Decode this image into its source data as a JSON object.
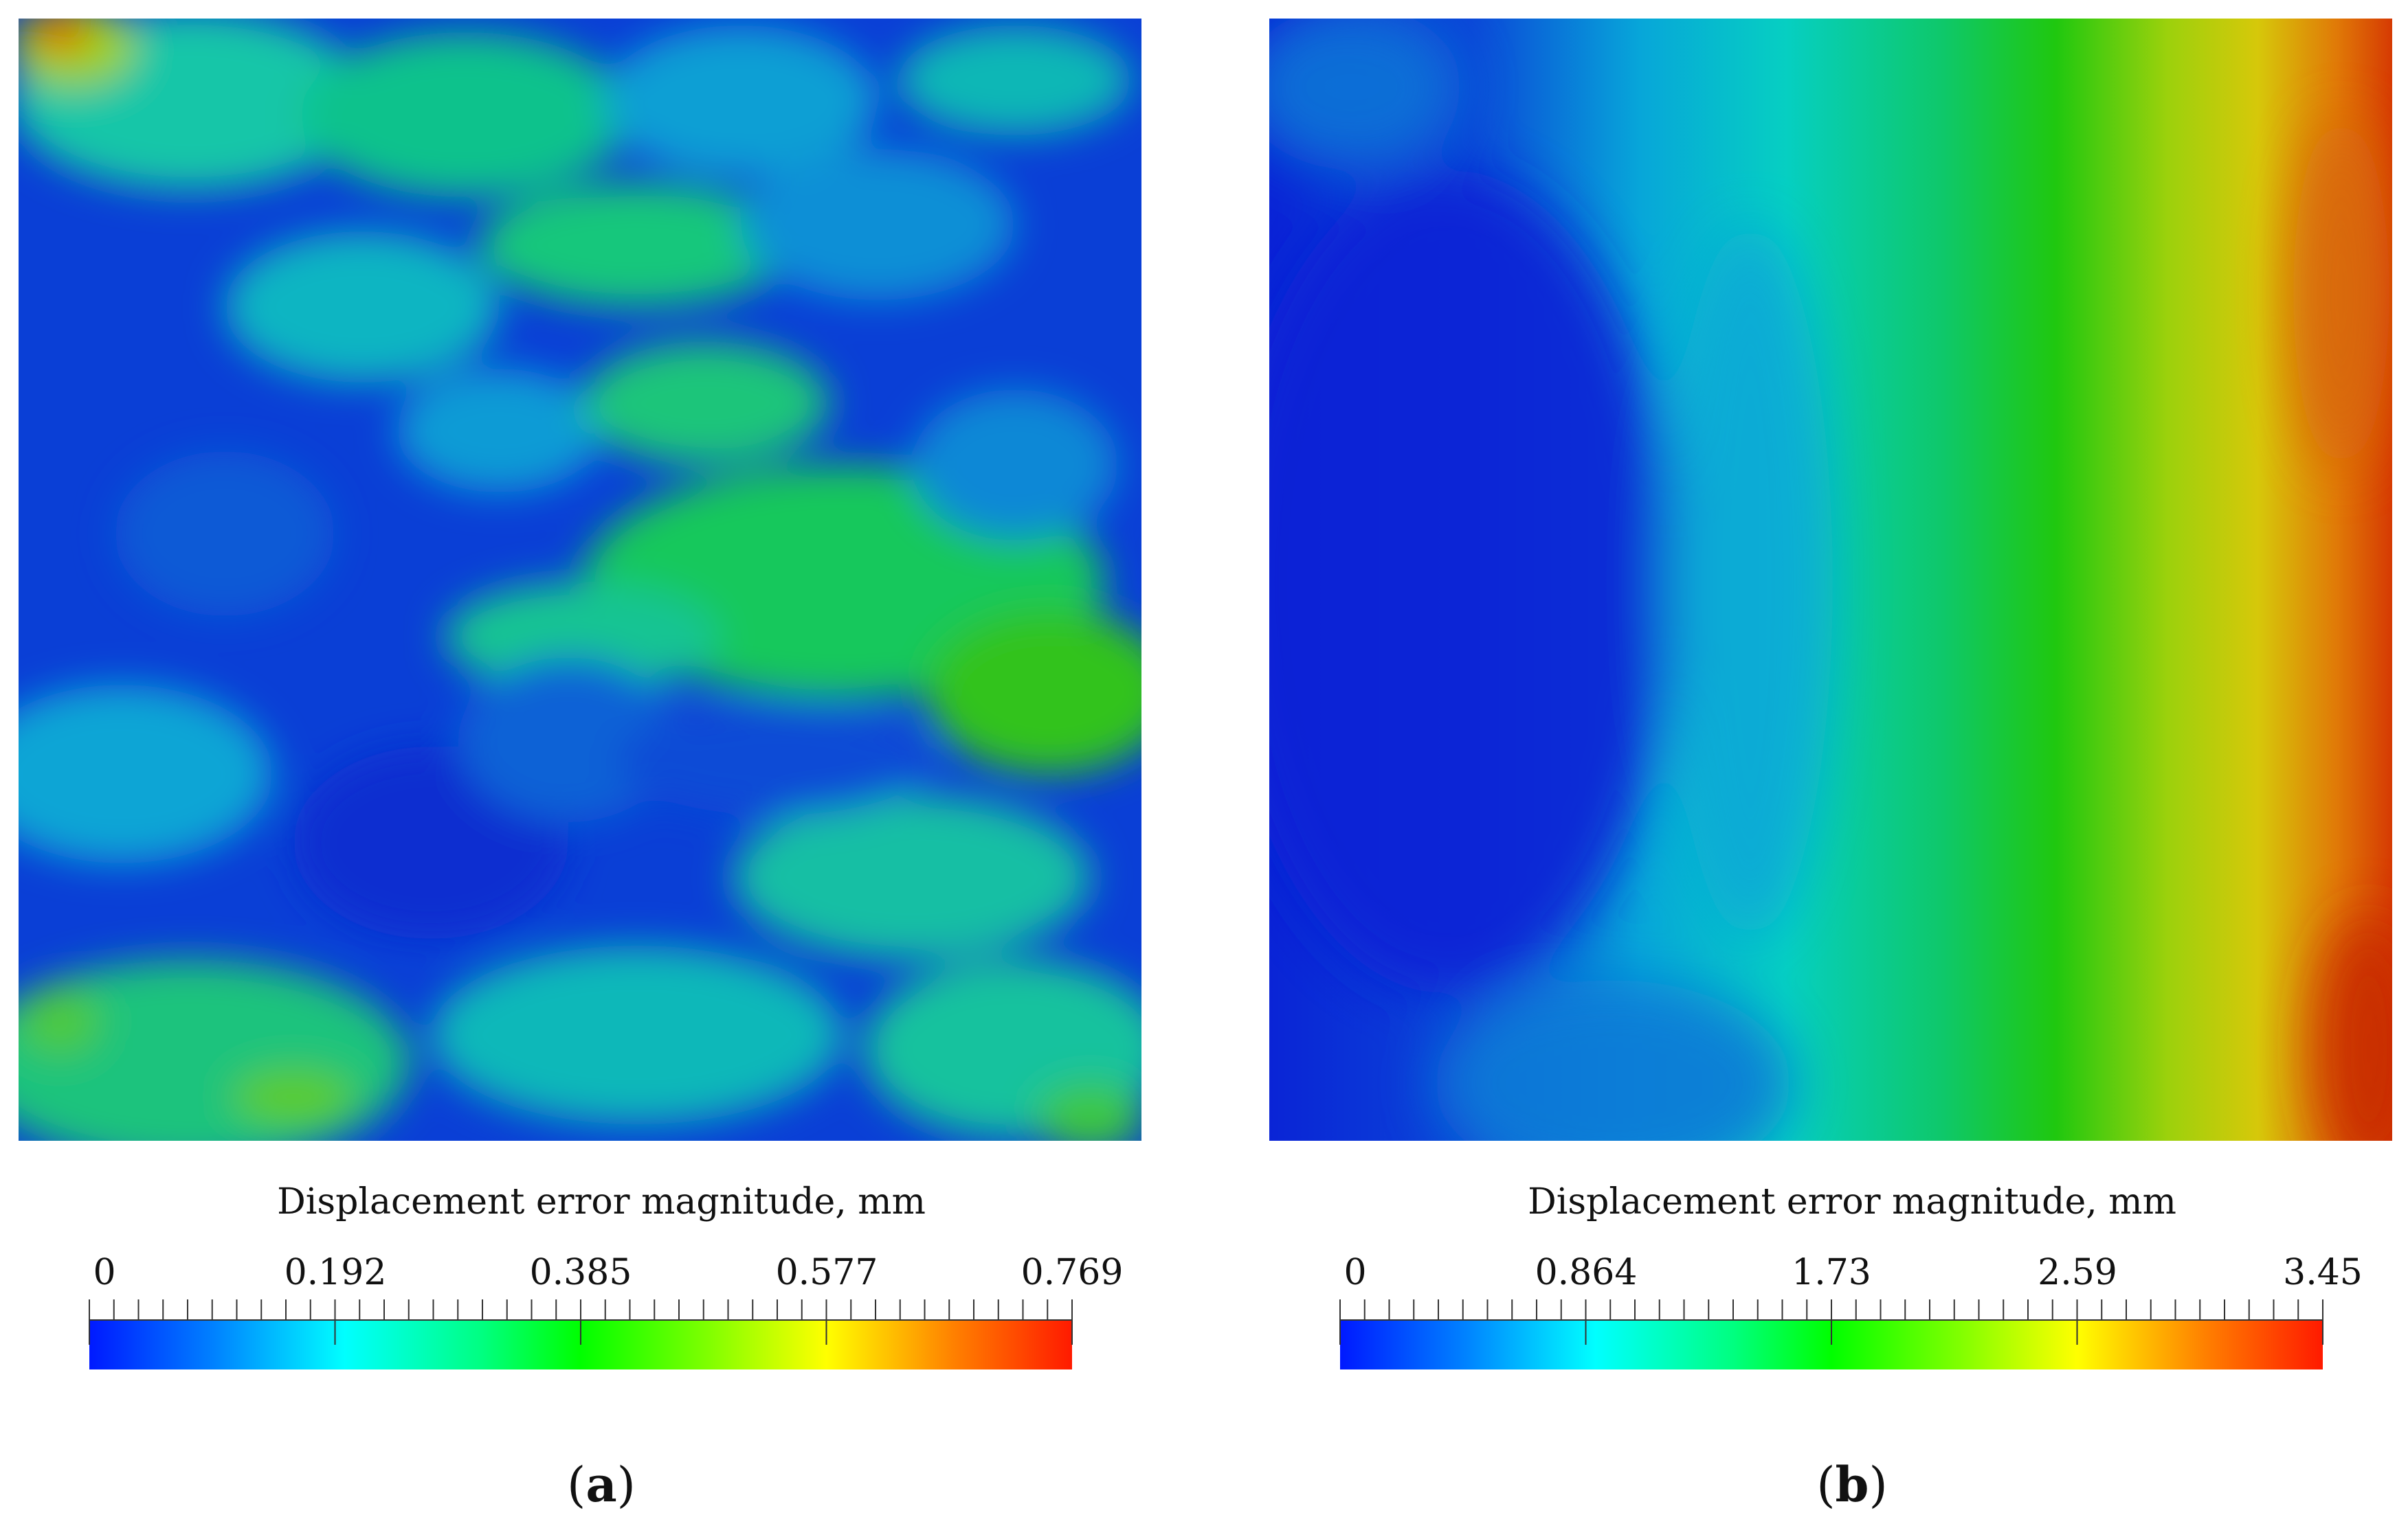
{
  "colormap": [
    "#0019ff",
    "#0080ff",
    "#00ffff",
    "#00ff80",
    "#00ff00",
    "#80ff00",
    "#ffff00",
    "#ff8000",
    "#ff1a00"
  ],
  "chart_data": [
    {
      "type": "heatmap",
      "panel": "(a)",
      "colorbar": {
        "title": "Displacement error magnitude, mm",
        "min": 0,
        "max": 0.769,
        "tick_labels": [
          "0",
          "0.192",
          "0.385",
          "0.577",
          "0.769"
        ],
        "tick_values": [
          0,
          0.192,
          0.385,
          0.577,
          0.769
        ]
      },
      "field_description": "irregular patchy field, mostly low values with scattered moderate patches; highest values near top-left corner"
    },
    {
      "type": "heatmap",
      "panel": "(b)",
      "colorbar": {
        "title": "Displacement error magnitude, mm",
        "min": 0,
        "max": 3.45,
        "tick_labels": [
          "0",
          "0.864",
          "1.73",
          "2.59",
          "3.45"
        ],
        "tick_values": [
          0,
          0.864,
          1.73,
          2.59,
          3.45
        ]
      },
      "field_description": "smooth gradient increasing from left (low) to right (high), curved iso-bands"
    }
  ],
  "panels": [
    {
      "label_open": "(",
      "label_letter": "a",
      "label_close": ")"
    },
    {
      "label_open": "(",
      "label_letter": "b",
      "label_close": ")"
    }
  ]
}
